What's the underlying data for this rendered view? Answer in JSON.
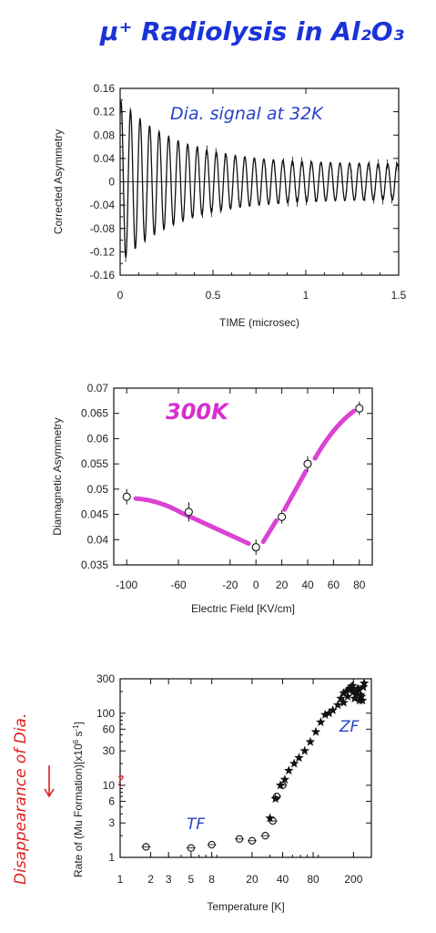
{
  "page_title": "μ⁺ Radiolysis in Al₂O₃",
  "colors": {
    "title": "#1a33d8",
    "annot_blue": "#2742c8",
    "magenta": "#d62fcf",
    "red": "#e0201e",
    "ink": "#111111"
  },
  "chart_data": [
    {
      "type": "line",
      "annotation": "Dia. signal at 32K",
      "xlabel": "TIME (microsec)",
      "ylabel": "Corrected Asymmetry",
      "xlim": [
        0,
        1.5
      ],
      "ylim": [
        -0.16,
        0.16
      ],
      "xticks": [
        "0",
        "0.5",
        "1",
        "1.5"
      ],
      "yticks": [
        "0.16",
        "0.12",
        "0.08",
        "0.04",
        "0",
        "-0.04",
        "-0.08",
        "-0.12",
        "-0.16"
      ],
      "oscillation": {
        "amplitude_start": 0.14,
        "amplitude_end": 0.03,
        "frequency_mhz": 19.5,
        "decay_per_us": 3.2,
        "x_range": [
          0,
          1.5
        ]
      }
    },
    {
      "type": "scatter",
      "annotation": "300K",
      "xlabel": "Electric Field [KV/cm]",
      "ylabel": "Diamagnetic Asymmetry",
      "xlim": [
        -110,
        90
      ],
      "ylim": [
        0.035,
        0.07
      ],
      "xticks": [
        "-100",
        "-60",
        "-20",
        "0",
        "20",
        "40",
        "60",
        "80"
      ],
      "yticks": [
        "0.07",
        "0.065",
        "0.06",
        "0.055",
        "0.05",
        "0.045",
        "0.04",
        "0.035"
      ],
      "x": [
        -100,
        -52,
        0,
        20,
        40,
        80
      ],
      "y": [
        0.0485,
        0.0455,
        0.0385,
        0.0445,
        0.055,
        0.066
      ],
      "err": [
        0.0008,
        0.0012,
        0.0008,
        0.0006,
        0.0008,
        0.0006
      ]
    },
    {
      "type": "scatter",
      "xlabel": "Temperature [K]",
      "ylabel_parts": [
        "Rate of",
        "Mu Formation",
        "[x10",
        "6",
        " s",
        "-1",
        "]"
      ],
      "annotation_tf": "TF",
      "annotation_zf": "ZF",
      "annotation_side": "Disappearance of Dia.",
      "annotation_question": "?",
      "scale": "log-log",
      "xlim": [
        1,
        300
      ],
      "ylim": [
        1,
        300
      ],
      "xticks": [
        "1",
        "2",
        "3",
        "5",
        "8",
        "20",
        "40",
        "80",
        "200"
      ],
      "yticks": [
        "300",
        "100",
        "60",
        "30",
        "10",
        "6",
        "3",
        "1"
      ],
      "series": [
        {
          "marker": "circle",
          "x": [
            1.8,
            5,
            8,
            15,
            20,
            27,
            32,
            35,
            40
          ],
          "y": [
            1.4,
            1.35,
            1.5,
            1.8,
            1.7,
            2.0,
            3.2,
            7,
            10
          ]
        },
        {
          "marker": "star",
          "x": [
            30,
            34,
            38,
            42,
            46,
            52,
            58,
            66,
            75,
            85,
            95,
            105,
            115,
            125,
            140,
            150,
            160,
            170,
            180,
            190,
            200,
            210,
            220,
            230,
            240,
            250,
            160,
            175,
            185,
            195,
            205,
            215,
            225,
            235,
            245,
            255
          ],
          "y": [
            3.5,
            6.5,
            10,
            12,
            16,
            20,
            24,
            30,
            40,
            55,
            75,
            95,
            100,
            110,
            130,
            160,
            190,
            200,
            210,
            230,
            200,
            180,
            220,
            150,
            170,
            230,
            140,
            170,
            220,
            240,
            160,
            200,
            210,
            180,
            150,
            260
          ]
        }
      ]
    }
  ]
}
